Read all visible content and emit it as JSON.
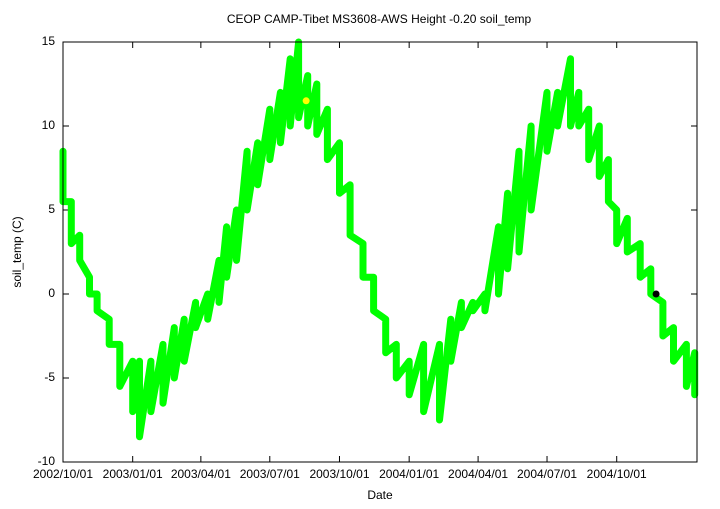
{
  "chart_data": {
    "type": "line",
    "title": "CEOP CAMP-Tibet MS3608-AWS Height -0.20 soil_temp",
    "x_label": "Date",
    "y_label": "soil_temp (C)",
    "xlim": [
      "2002/10/01",
      "2005/01/15"
    ],
    "xticks": [
      "2002/10/01",
      "2003/01/01",
      "2003/04/01",
      "2003/07/01",
      "2003/10/01",
      "2004/01/01",
      "2004/04/01",
      "2004/07/01",
      "2004/10/01"
    ],
    "ylim": [
      -10,
      15
    ],
    "yticks": [
      -10,
      -5,
      0,
      5,
      10,
      15
    ],
    "series": [
      {
        "color": "#00ff00",
        "x": [
          "2002/10/01",
          "2002/10/01",
          "2002/10/12",
          "2002/10/12",
          "2002/10/23",
          "2002/10/23",
          "2002/11/05",
          "2002/11/05",
          "2002/11/15",
          "2002/11/15",
          "2002/12/01",
          "2002/12/01",
          "2002/12/15",
          "2002/12/15",
          "2003/01/01",
          "2003/01/01",
          "2003/01/10",
          "2003/01/10",
          "2003/01/25",
          "2003/01/25",
          "2003/02/10",
          "2003/02/10",
          "2003/02/25",
          "2003/02/25",
          "2003/03/10",
          "2003/03/10",
          "2003/03/25",
          "2003/03/25",
          "2003/04/10",
          "2003/04/10",
          "2003/04/25",
          "2003/04/25",
          "2003/05/05",
          "2003/05/05",
          "2003/05/18",
          "2003/05/18",
          "2003/06/01",
          "2003/06/01",
          "2003/06/15",
          "2003/06/15",
          "2003/07/01",
          "2003/07/01",
          "2003/07/15",
          "2003/07/15",
          "2003/07/28",
          "2003/07/28",
          "2003/08/08",
          "2003/08/08",
          "2003/08/20",
          "2003/08/20",
          "2003/09/01",
          "2003/09/01",
          "2003/09/15",
          "2003/09/15",
          "2003/10/01",
          "2003/10/01",
          "2003/10/15",
          "2003/10/15",
          "2003/11/01",
          "2003/11/01",
          "2003/11/15",
          "2003/11/15",
          "2003/12/01",
          "2003/12/01",
          "2003/12/15",
          "2003/12/15",
          "2004/01/01",
          "2004/01/01",
          "2004/01/20",
          "2004/01/20",
          "2004/02/10",
          "2004/02/10",
          "2004/02/25",
          "2004/02/25",
          "2004/03/10",
          "2004/03/10",
          "2004/03/25",
          "2004/03/25",
          "2004/04/10",
          "2004/04/10",
          "2004/04/28",
          "2004/04/28",
          "2004/05/10",
          "2004/05/10",
          "2004/05/25",
          "2004/05/25",
          "2004/06/10",
          "2004/06/10",
          "2004/07/01",
          "2004/07/01",
          "2004/07/15",
          "2004/07/15",
          "2004/08/01",
          "2004/08/01",
          "2004/08/12",
          "2004/08/12",
          "2004/08/25",
          "2004/08/25",
          "2004/09/08",
          "2004/09/08",
          "2004/09/20",
          "2004/09/20",
          "2004/10/01",
          "2004/10/01",
          "2004/10/15",
          "2004/10/15",
          "2004/11/01",
          "2004/11/01",
          "2004/11/15",
          "2004/11/15",
          "2004/12/01",
          "2004/12/01",
          "2004/12/15",
          "2004/12/15",
          "2005/01/01",
          "2005/01/01",
          "2005/01/12",
          "2005/01/12"
        ],
        "values": [
          8.5,
          5.5,
          5.5,
          3,
          3.5,
          2,
          1,
          0,
          0,
          -1,
          -1.5,
          -3,
          -3,
          -5.5,
          -4,
          -7,
          -4,
          -8.5,
          -4,
          -7,
          -3,
          -6.5,
          -2,
          -5,
          -1.5,
          -4,
          -0.5,
          -2,
          0,
          -1.5,
          2,
          -0.5,
          4,
          1,
          5,
          2,
          8.5,
          5,
          9,
          6.5,
          11,
          8,
          12,
          9,
          14,
          10,
          15,
          10.5,
          13,
          10,
          12.5,
          9.5,
          11,
          8,
          9,
          6,
          6.5,
          3.5,
          3,
          1,
          1,
          -1,
          -1.5,
          -3.5,
          -3,
          -5,
          -4,
          -6,
          -3,
          -7,
          -3,
          -7.5,
          -1.5,
          -4,
          -0.5,
          -2,
          -0.5,
          -1,
          0,
          -1,
          4,
          0,
          6,
          1.5,
          8.5,
          2.5,
          10,
          5,
          12,
          8.5,
          12,
          10,
          14,
          10,
          12,
          10,
          11,
          8,
          10,
          7,
          8,
          5.5,
          5,
          3,
          4.5,
          2.5,
          3,
          1,
          1.5,
          0,
          -0.5,
          -2.5,
          -2,
          -4,
          -3,
          -5.5,
          -3.5,
          -6
        ]
      },
      {
        "color": "#ffff00",
        "x": [
          "2003/08/18"
        ],
        "values": [
          11.5
        ]
      },
      {
        "color": "#000000",
        "x": [
          "2004/11/22"
        ],
        "values": [
          0
        ]
      }
    ]
  }
}
